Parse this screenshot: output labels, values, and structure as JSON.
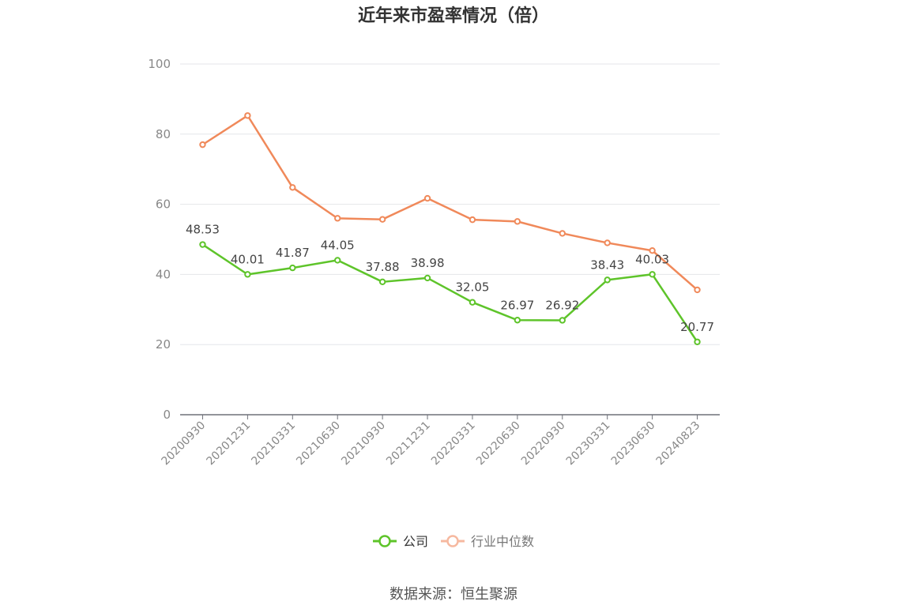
{
  "title": "近年来市盈率情况（倍）",
  "source": "数据来源：恒生聚源",
  "colors": {
    "company": "#5ec42a",
    "industry": "#f0895a",
    "industry_legend_muted": "#f6b9a0",
    "grid": "#e4e6ea",
    "axis": "#6e7079",
    "tick_text": "#888888",
    "label_text": "#444444"
  },
  "chart_data": {
    "type": "line",
    "title": "近年来市盈率情况（倍）",
    "categories": [
      "20200930",
      "20201231",
      "20210331",
      "20210630",
      "20210930",
      "20211231",
      "20220331",
      "20220630",
      "20220930",
      "20230331",
      "20230630",
      "20240823"
    ],
    "yticks": [
      0,
      20,
      40,
      60,
      80,
      100
    ],
    "ylim": [
      0,
      100
    ],
    "grid": true,
    "legend_position": "bottom-center",
    "series": [
      {
        "name": "公司",
        "key": "company",
        "values": [
          48.53,
          40.01,
          41.87,
          44.05,
          37.88,
          38.98,
          32.05,
          26.97,
          26.92,
          38.43,
          40.03,
          20.77
        ],
        "labels": [
          "48.53",
          "40.01",
          "41.87",
          "44.05",
          "37.88",
          "38.98",
          "32.05",
          "26.97",
          "26.92",
          "38.43",
          "40.03",
          "20.77"
        ],
        "show_labels": true
      },
      {
        "name": "行业中位数",
        "key": "industry",
        "values": [
          77.0,
          85.3,
          64.8,
          56.0,
          55.7,
          61.7,
          55.6,
          55.1,
          51.7,
          49.0,
          46.8,
          35.6
        ],
        "show_labels": false
      }
    ]
  }
}
